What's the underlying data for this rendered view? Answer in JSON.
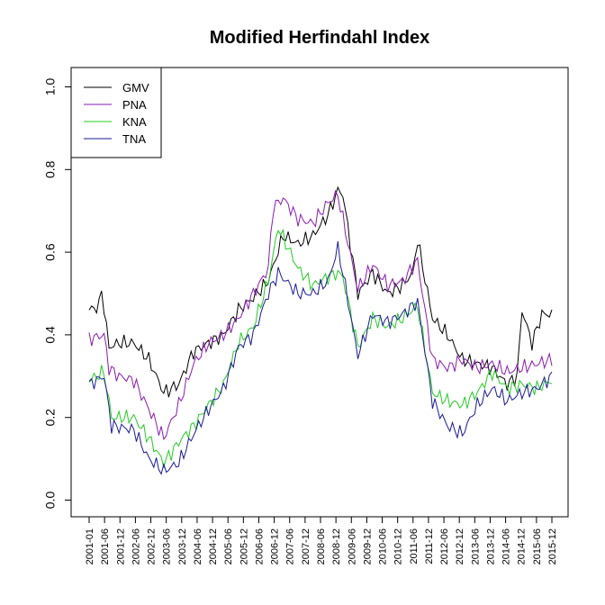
{
  "chart_data": {
    "type": "line",
    "title": "Modified Herfindahl Index",
    "xlabel": "",
    "ylabel": "",
    "ylim": [
      -0.04,
      1.04
    ],
    "yticks": [
      0.0,
      0.2,
      0.4,
      0.6,
      0.8,
      1.0
    ],
    "ytick_labels": [
      "0.0",
      "0.2",
      "0.4",
      "0.6",
      "0.8",
      "1.0"
    ],
    "xtick_labels": [
      "2001-01",
      "2001-06",
      "2001-12",
      "2002-06",
      "2002-12",
      "2003-06",
      "2003-12",
      "2004-06",
      "2004-12",
      "2005-06",
      "2005-12",
      "2006-06",
      "2006-12",
      "2007-06",
      "2007-12",
      "2008-06",
      "2008-12",
      "2009-06",
      "2009-12",
      "2010-06",
      "2010-12",
      "2011-06",
      "2011-12",
      "2012-06",
      "2012-12",
      "2013-06",
      "2013-12",
      "2014-06",
      "2014-12",
      "2015-06",
      "2015-12"
    ],
    "legend_position": "top-left",
    "series": [
      {
        "name": "GMV",
        "color": "#000000",
        "keypoints": [
          [
            0,
            0.46
          ],
          [
            4,
            0.47
          ],
          [
            5,
            0.51
          ],
          [
            8,
            0.37
          ],
          [
            12,
            0.38
          ],
          [
            18,
            0.38
          ],
          [
            24,
            0.34
          ],
          [
            30,
            0.26
          ],
          [
            36,
            0.28
          ],
          [
            42,
            0.36
          ],
          [
            48,
            0.38
          ],
          [
            54,
            0.4
          ],
          [
            60,
            0.46
          ],
          [
            66,
            0.49
          ],
          [
            72,
            0.53
          ],
          [
            78,
            0.64
          ],
          [
            84,
            0.62
          ],
          [
            90,
            0.64
          ],
          [
            96,
            0.69
          ],
          [
            100,
            0.75
          ],
          [
            102,
            0.74
          ],
          [
            108,
            0.5
          ],
          [
            114,
            0.55
          ],
          [
            120,
            0.5
          ],
          [
            126,
            0.52
          ],
          [
            130,
            0.55
          ],
          [
            132,
            0.63
          ],
          [
            138,
            0.44
          ],
          [
            144,
            0.4
          ],
          [
            150,
            0.34
          ],
          [
            156,
            0.33
          ],
          [
            162,
            0.32
          ],
          [
            168,
            0.28
          ],
          [
            172,
            0.3
          ],
          [
            174,
            0.46
          ],
          [
            178,
            0.38
          ],
          [
            182,
            0.45
          ],
          [
            186,
            0.45
          ]
        ]
      },
      {
        "name": "PNA",
        "color": "#8B1AB3",
        "keypoints": [
          [
            0,
            0.39
          ],
          [
            6,
            0.4
          ],
          [
            8,
            0.32
          ],
          [
            12,
            0.3
          ],
          [
            18,
            0.29
          ],
          [
            24,
            0.22
          ],
          [
            30,
            0.15
          ],
          [
            36,
            0.23
          ],
          [
            42,
            0.33
          ],
          [
            48,
            0.38
          ],
          [
            54,
            0.4
          ],
          [
            60,
            0.44
          ],
          [
            66,
            0.5
          ],
          [
            72,
            0.56
          ],
          [
            74,
            0.71
          ],
          [
            78,
            0.73
          ],
          [
            84,
            0.68
          ],
          [
            90,
            0.67
          ],
          [
            96,
            0.72
          ],
          [
            100,
            0.74
          ],
          [
            102,
            0.68
          ],
          [
            108,
            0.51
          ],
          [
            114,
            0.57
          ],
          [
            120,
            0.52
          ],
          [
            126,
            0.53
          ],
          [
            132,
            0.58
          ],
          [
            138,
            0.34
          ],
          [
            144,
            0.32
          ],
          [
            150,
            0.34
          ],
          [
            156,
            0.32
          ],
          [
            162,
            0.33
          ],
          [
            168,
            0.31
          ],
          [
            174,
            0.32
          ],
          [
            180,
            0.33
          ],
          [
            186,
            0.34
          ]
        ]
      },
      {
        "name": "KNA",
        "color": "#22CC22",
        "keypoints": [
          [
            0,
            0.29
          ],
          [
            6,
            0.31
          ],
          [
            9,
            0.2
          ],
          [
            18,
            0.2
          ],
          [
            24,
            0.15
          ],
          [
            30,
            0.09
          ],
          [
            36,
            0.14
          ],
          [
            42,
            0.18
          ],
          [
            48,
            0.23
          ],
          [
            54,
            0.28
          ],
          [
            60,
            0.38
          ],
          [
            66,
            0.42
          ],
          [
            72,
            0.53
          ],
          [
            76,
            0.66
          ],
          [
            84,
            0.56
          ],
          [
            90,
            0.52
          ],
          [
            96,
            0.54
          ],
          [
            100,
            0.55
          ],
          [
            102,
            0.54
          ],
          [
            108,
            0.37
          ],
          [
            114,
            0.44
          ],
          [
            120,
            0.42
          ],
          [
            126,
            0.44
          ],
          [
            132,
            0.47
          ],
          [
            138,
            0.26
          ],
          [
            144,
            0.24
          ],
          [
            150,
            0.23
          ],
          [
            156,
            0.26
          ],
          [
            162,
            0.31
          ],
          [
            168,
            0.27
          ],
          [
            174,
            0.28
          ],
          [
            180,
            0.27
          ],
          [
            186,
            0.29
          ]
        ]
      },
      {
        "name": "TNA",
        "color": "#1A1A99",
        "keypoints": [
          [
            0,
            0.28
          ],
          [
            6,
            0.3
          ],
          [
            9,
            0.18
          ],
          [
            18,
            0.17
          ],
          [
            24,
            0.1
          ],
          [
            30,
            0.07
          ],
          [
            36,
            0.09
          ],
          [
            42,
            0.16
          ],
          [
            48,
            0.22
          ],
          [
            54,
            0.27
          ],
          [
            60,
            0.37
          ],
          [
            66,
            0.4
          ],
          [
            72,
            0.5
          ],
          [
            76,
            0.55
          ],
          [
            84,
            0.5
          ],
          [
            90,
            0.5
          ],
          [
            96,
            0.53
          ],
          [
            100,
            0.61
          ],
          [
            102,
            0.55
          ],
          [
            108,
            0.35
          ],
          [
            114,
            0.45
          ],
          [
            120,
            0.43
          ],
          [
            126,
            0.45
          ],
          [
            132,
            0.48
          ],
          [
            138,
            0.24
          ],
          [
            144,
            0.18
          ],
          [
            150,
            0.16
          ],
          [
            156,
            0.23
          ],
          [
            162,
            0.27
          ],
          [
            168,
            0.24
          ],
          [
            174,
            0.26
          ],
          [
            180,
            0.27
          ],
          [
            186,
            0.3
          ]
        ]
      }
    ]
  }
}
